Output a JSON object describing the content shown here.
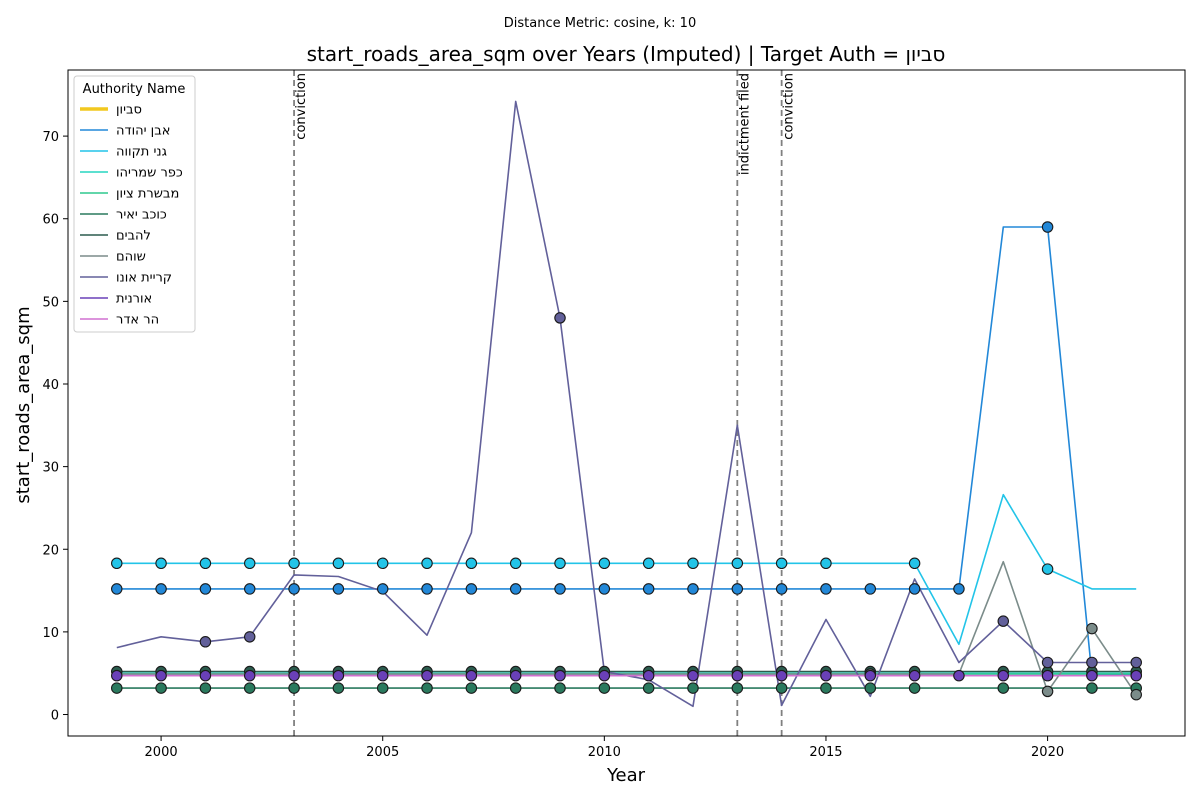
{
  "chart_data": {
    "type": "line",
    "suptitle": "Distance Metric: cosine, k: 10",
    "title": "start_roads_area_sqm over Years (Imputed) | Target Auth = סביון",
    "xlabel": "Year",
    "ylabel": "start_roads_area_sqm",
    "xlim": [
      1997.9,
      2023.1
    ],
    "ylim": [
      -2.6,
      78.0
    ],
    "xticks": [
      2000,
      2005,
      2010,
      2015,
      2020
    ],
    "yticks": [
      0,
      10,
      20,
      30,
      40,
      50,
      60,
      70
    ],
    "grid": false,
    "legend_title": "Authority Name",
    "legend_position": "top-left",
    "x": [
      1999,
      2000,
      2001,
      2002,
      2003,
      2004,
      2005,
      2006,
      2007,
      2008,
      2009,
      2010,
      2011,
      2012,
      2013,
      2014,
      2015,
      2016,
      2017,
      2018,
      2019,
      2020,
      2021,
      2022
    ],
    "series": [
      {
        "name": "סביון",
        "color": "#f2c81f",
        "width": 3.5,
        "values": [
          null,
          null,
          null,
          null,
          null,
          null,
          null,
          null,
          null,
          null,
          null,
          null,
          null,
          null,
          null,
          null,
          null,
          null,
          null,
          null,
          null,
          null,
          null,
          null
        ],
        "markers": []
      },
      {
        "name": "אבן יהודה",
        "color": "#2288d8",
        "width": 1.6,
        "values": [
          15.2,
          15.2,
          15.2,
          15.2,
          15.2,
          15.2,
          15.2,
          15.2,
          15.2,
          15.2,
          15.2,
          15.2,
          15.2,
          15.2,
          15.2,
          15.2,
          15.2,
          15.2,
          15.2,
          15.2,
          59.0,
          59.0,
          4.8,
          4.8
        ],
        "markers": [
          1999,
          2000,
          2001,
          2002,
          2003,
          2004,
          2005,
          2006,
          2007,
          2008,
          2009,
          2010,
          2011,
          2012,
          2013,
          2014,
          2015,
          2016,
          2017,
          2018,
          2020,
          2021,
          2022
        ]
      },
      {
        "name": "גני תקווה",
        "color": "#22c4e8",
        "width": 1.6,
        "values": [
          18.3,
          18.3,
          18.3,
          18.3,
          18.3,
          18.3,
          18.3,
          18.3,
          18.3,
          18.3,
          18.3,
          18.3,
          18.3,
          18.3,
          18.3,
          18.3,
          18.3,
          18.3,
          18.3,
          8.5,
          26.6,
          17.6,
          15.2,
          15.2
        ],
        "markers": [
          1999,
          2000,
          2001,
          2002,
          2003,
          2004,
          2005,
          2006,
          2007,
          2008,
          2009,
          2010,
          2011,
          2012,
          2013,
          2014,
          2015,
          2017,
          2020
        ]
      },
      {
        "name": "כפר שמריהו",
        "color": "#27d6c0",
        "width": 1.6,
        "values": [
          5.0,
          5.0,
          5.0,
          5.0,
          5.0,
          5.0,
          5.0,
          5.0,
          5.0,
          5.0,
          5.0,
          5.0,
          5.0,
          5.0,
          5.0,
          5.0,
          5.0,
          5.0,
          5.0,
          5.0,
          5.0,
          5.0,
          5.0,
          5.0
        ],
        "markers": []
      },
      {
        "name": "מבשרת ציון",
        "color": "#2ec98e",
        "width": 1.6,
        "values": [
          4.9,
          4.9,
          4.9,
          4.9,
          4.9,
          4.9,
          4.9,
          4.9,
          4.9,
          4.9,
          4.9,
          4.9,
          4.9,
          4.9,
          4.9,
          4.9,
          4.9,
          4.9,
          4.9,
          4.9,
          4.9,
          4.9,
          4.9,
          4.9
        ],
        "markers": []
      },
      {
        "name": "כוכב יאיר",
        "color": "#2a7a5e",
        "width": 1.6,
        "values": [
          3.2,
          3.2,
          3.2,
          3.2,
          3.2,
          3.2,
          3.2,
          3.2,
          3.2,
          3.2,
          3.2,
          3.2,
          3.2,
          3.2,
          3.2,
          3.2,
          3.2,
          3.2,
          3.2,
          3.2,
          3.2,
          3.2,
          3.2,
          3.2
        ],
        "markers": [
          1999,
          2000,
          2001,
          2002,
          2003,
          2004,
          2005,
          2006,
          2007,
          2008,
          2009,
          2010,
          2011,
          2012,
          2013,
          2014,
          2015,
          2016,
          2017,
          2019,
          2021,
          2022
        ]
      },
      {
        "name": "להבים",
        "color": "#2b5c4e",
        "width": 1.6,
        "values": [
          5.2,
          5.2,
          5.2,
          5.2,
          5.2,
          5.2,
          5.2,
          5.2,
          5.2,
          5.2,
          5.2,
          5.2,
          5.2,
          5.2,
          5.2,
          5.2,
          5.2,
          5.2,
          5.2,
          5.2,
          5.2,
          5.2,
          5.2,
          5.2
        ],
        "markers": [
          1999,
          2000,
          2001,
          2002,
          2003,
          2004,
          2005,
          2006,
          2007,
          2008,
          2009,
          2010,
          2011,
          2012,
          2013,
          2014,
          2015,
          2016,
          2017,
          2019,
          2020,
          2021,
          2022
        ]
      },
      {
        "name": "שוהם",
        "color": "#7b8c8a",
        "width": 1.6,
        "values": [
          4.9,
          4.9,
          4.9,
          4.9,
          4.9,
          4.9,
          4.9,
          4.9,
          4.9,
          4.9,
          4.9,
          4.9,
          4.9,
          4.9,
          4.9,
          4.9,
          4.9,
          4.9,
          4.9,
          4.9,
          18.5,
          2.8,
          10.4,
          2.4
        ],
        "markers": [
          2016,
          2020,
          2021,
          2022
        ]
      },
      {
        "name": "קריית אונו",
        "color": "#62609a",
        "width": 1.6,
        "values": [
          8.1,
          9.4,
          8.8,
          9.4,
          16.9,
          16.7,
          14.9,
          9.6,
          22.0,
          74.2,
          48.0,
          5.2,
          4.2,
          1.0,
          35.0,
          1.1,
          11.5,
          2.2,
          16.4,
          6.3,
          11.3,
          6.3,
          6.3,
          6.3
        ],
        "markers": [
          2001,
          2002,
          2009,
          2019,
          2020,
          2021,
          2022
        ]
      },
      {
        "name": "אורנית",
        "color": "#6a40b8",
        "width": 1.6,
        "values": [
          4.7,
          4.7,
          4.7,
          4.7,
          4.7,
          4.7,
          4.7,
          4.7,
          4.7,
          4.7,
          4.7,
          4.7,
          4.7,
          4.7,
          4.7,
          4.7,
          4.7,
          4.7,
          4.7,
          4.7,
          4.7,
          4.7,
          4.7,
          4.7
        ],
        "markers": [
          1999,
          2000,
          2001,
          2002,
          2003,
          2004,
          2005,
          2006,
          2007,
          2008,
          2009,
          2010,
          2011,
          2012,
          2013,
          2014,
          2015,
          2016,
          2017,
          2018,
          2019,
          2020,
          2021,
          2022
        ]
      },
      {
        "name": "הר אדר",
        "color": "#d070d0",
        "width": 1.6,
        "values": [
          4.7,
          4.7,
          4.7,
          4.7,
          4.7,
          4.7,
          4.7,
          4.7,
          4.7,
          4.7,
          4.7,
          4.7,
          4.7,
          4.7,
          4.7,
          4.7,
          4.7,
          4.7,
          4.7,
          4.7,
          4.7,
          4.7,
          4.7,
          4.7
        ],
        "markers": []
      }
    ],
    "events": [
      {
        "x": 2003,
        "label": "conviction"
      },
      {
        "x": 2013,
        "label": "indictment filed"
      },
      {
        "x": 2014,
        "label": "conviction"
      }
    ]
  }
}
